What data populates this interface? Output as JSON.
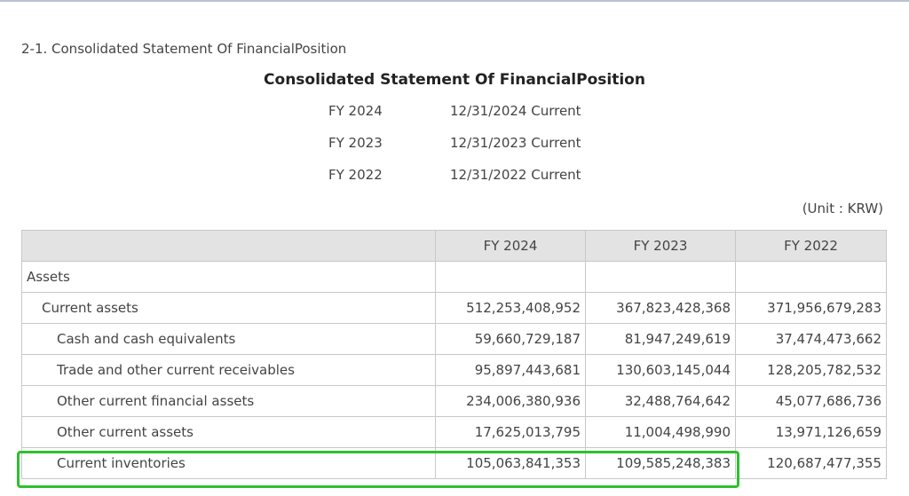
{
  "section_heading": "2-1. Consolidated Statement Of FinancialPosition",
  "title": "Consolidated Statement Of FinancialPosition",
  "periods": [
    {
      "fy": "FY 2024",
      "date": "12/31/2024 Current"
    },
    {
      "fy": "FY 2023",
      "date": "12/31/2023 Current"
    },
    {
      "fy": "FY 2022",
      "date": "12/31/2022 Current"
    }
  ],
  "unit": "(Unit : KRW)",
  "table": {
    "headers": [
      "",
      "FY 2024",
      "FY 2023",
      "FY 2022"
    ],
    "rows": [
      {
        "label": "Assets",
        "values": [
          "",
          "",
          ""
        ]
      },
      {
        "label": "Current assets",
        "values": [
          "512,253,408,952",
          "367,823,428,368",
          "371,956,679,283"
        ]
      },
      {
        "label": "Cash and cash equivalents",
        "values": [
          "59,660,729,187",
          "81,947,249,619",
          "37,474,473,662"
        ]
      },
      {
        "label": "Trade and other current receivables",
        "values": [
          "95,897,443,681",
          "130,603,145,044",
          "128,205,782,532"
        ]
      },
      {
        "label": "Other current financial assets",
        "values": [
          "234,006,380,936",
          "32,488,764,642",
          "45,077,686,736"
        ]
      },
      {
        "label": "Other current assets",
        "values": [
          "17,625,013,795",
          "11,004,498,990",
          "13,971,126,659"
        ]
      },
      {
        "label": "Current inventories",
        "values": [
          "105,063,841,353",
          "109,585,248,383",
          "120,687,477,355"
        ]
      }
    ]
  },
  "colors": {
    "highlight": "#2ec02e",
    "header_bg": "#e3e3e3",
    "border": "#c8c8c8"
  }
}
